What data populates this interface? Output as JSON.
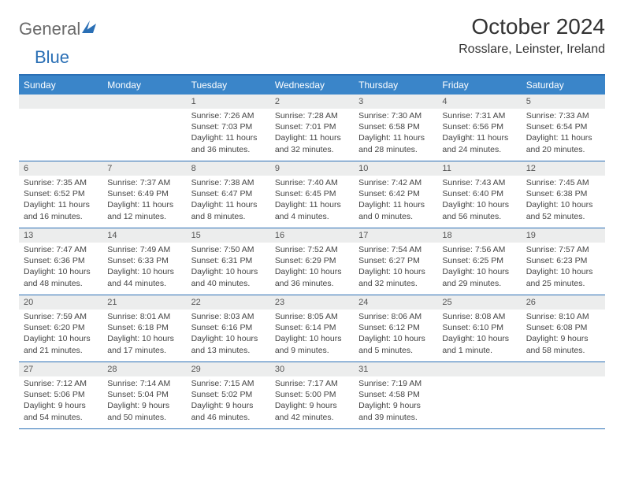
{
  "logo": {
    "text1": "General",
    "text2": "Blue"
  },
  "title": "October 2024",
  "location": "Rosslare, Leinster, Ireland",
  "colors": {
    "header_bar": "#3a85c9",
    "accent_line": "#2a6fb5",
    "daynum_bg": "#eceded",
    "logo_gray": "#6a6a6a",
    "logo_blue": "#2a6fb5"
  },
  "days_of_week": [
    "Sunday",
    "Monday",
    "Tuesday",
    "Wednesday",
    "Thursday",
    "Friday",
    "Saturday"
  ],
  "weeks": [
    [
      null,
      null,
      {
        "n": "1",
        "sr": "Sunrise: 7:26 AM",
        "ss": "Sunset: 7:03 PM",
        "dl": "Daylight: 11 hours and 36 minutes."
      },
      {
        "n": "2",
        "sr": "Sunrise: 7:28 AM",
        "ss": "Sunset: 7:01 PM",
        "dl": "Daylight: 11 hours and 32 minutes."
      },
      {
        "n": "3",
        "sr": "Sunrise: 7:30 AM",
        "ss": "Sunset: 6:58 PM",
        "dl": "Daylight: 11 hours and 28 minutes."
      },
      {
        "n": "4",
        "sr": "Sunrise: 7:31 AM",
        "ss": "Sunset: 6:56 PM",
        "dl": "Daylight: 11 hours and 24 minutes."
      },
      {
        "n": "5",
        "sr": "Sunrise: 7:33 AM",
        "ss": "Sunset: 6:54 PM",
        "dl": "Daylight: 11 hours and 20 minutes."
      }
    ],
    [
      {
        "n": "6",
        "sr": "Sunrise: 7:35 AM",
        "ss": "Sunset: 6:52 PM",
        "dl": "Daylight: 11 hours and 16 minutes."
      },
      {
        "n": "7",
        "sr": "Sunrise: 7:37 AM",
        "ss": "Sunset: 6:49 PM",
        "dl": "Daylight: 11 hours and 12 minutes."
      },
      {
        "n": "8",
        "sr": "Sunrise: 7:38 AM",
        "ss": "Sunset: 6:47 PM",
        "dl": "Daylight: 11 hours and 8 minutes."
      },
      {
        "n": "9",
        "sr": "Sunrise: 7:40 AM",
        "ss": "Sunset: 6:45 PM",
        "dl": "Daylight: 11 hours and 4 minutes."
      },
      {
        "n": "10",
        "sr": "Sunrise: 7:42 AM",
        "ss": "Sunset: 6:42 PM",
        "dl": "Daylight: 11 hours and 0 minutes."
      },
      {
        "n": "11",
        "sr": "Sunrise: 7:43 AM",
        "ss": "Sunset: 6:40 PM",
        "dl": "Daylight: 10 hours and 56 minutes."
      },
      {
        "n": "12",
        "sr": "Sunrise: 7:45 AM",
        "ss": "Sunset: 6:38 PM",
        "dl": "Daylight: 10 hours and 52 minutes."
      }
    ],
    [
      {
        "n": "13",
        "sr": "Sunrise: 7:47 AM",
        "ss": "Sunset: 6:36 PM",
        "dl": "Daylight: 10 hours and 48 minutes."
      },
      {
        "n": "14",
        "sr": "Sunrise: 7:49 AM",
        "ss": "Sunset: 6:33 PM",
        "dl": "Daylight: 10 hours and 44 minutes."
      },
      {
        "n": "15",
        "sr": "Sunrise: 7:50 AM",
        "ss": "Sunset: 6:31 PM",
        "dl": "Daylight: 10 hours and 40 minutes."
      },
      {
        "n": "16",
        "sr": "Sunrise: 7:52 AM",
        "ss": "Sunset: 6:29 PM",
        "dl": "Daylight: 10 hours and 36 minutes."
      },
      {
        "n": "17",
        "sr": "Sunrise: 7:54 AM",
        "ss": "Sunset: 6:27 PM",
        "dl": "Daylight: 10 hours and 32 minutes."
      },
      {
        "n": "18",
        "sr": "Sunrise: 7:56 AM",
        "ss": "Sunset: 6:25 PM",
        "dl": "Daylight: 10 hours and 29 minutes."
      },
      {
        "n": "19",
        "sr": "Sunrise: 7:57 AM",
        "ss": "Sunset: 6:23 PM",
        "dl": "Daylight: 10 hours and 25 minutes."
      }
    ],
    [
      {
        "n": "20",
        "sr": "Sunrise: 7:59 AM",
        "ss": "Sunset: 6:20 PM",
        "dl": "Daylight: 10 hours and 21 minutes."
      },
      {
        "n": "21",
        "sr": "Sunrise: 8:01 AM",
        "ss": "Sunset: 6:18 PM",
        "dl": "Daylight: 10 hours and 17 minutes."
      },
      {
        "n": "22",
        "sr": "Sunrise: 8:03 AM",
        "ss": "Sunset: 6:16 PM",
        "dl": "Daylight: 10 hours and 13 minutes."
      },
      {
        "n": "23",
        "sr": "Sunrise: 8:05 AM",
        "ss": "Sunset: 6:14 PM",
        "dl": "Daylight: 10 hours and 9 minutes."
      },
      {
        "n": "24",
        "sr": "Sunrise: 8:06 AM",
        "ss": "Sunset: 6:12 PM",
        "dl": "Daylight: 10 hours and 5 minutes."
      },
      {
        "n": "25",
        "sr": "Sunrise: 8:08 AM",
        "ss": "Sunset: 6:10 PM",
        "dl": "Daylight: 10 hours and 1 minute."
      },
      {
        "n": "26",
        "sr": "Sunrise: 8:10 AM",
        "ss": "Sunset: 6:08 PM",
        "dl": "Daylight: 9 hours and 58 minutes."
      }
    ],
    [
      {
        "n": "27",
        "sr": "Sunrise: 7:12 AM",
        "ss": "Sunset: 5:06 PM",
        "dl": "Daylight: 9 hours and 54 minutes."
      },
      {
        "n": "28",
        "sr": "Sunrise: 7:14 AM",
        "ss": "Sunset: 5:04 PM",
        "dl": "Daylight: 9 hours and 50 minutes."
      },
      {
        "n": "29",
        "sr": "Sunrise: 7:15 AM",
        "ss": "Sunset: 5:02 PM",
        "dl": "Daylight: 9 hours and 46 minutes."
      },
      {
        "n": "30",
        "sr": "Sunrise: 7:17 AM",
        "ss": "Sunset: 5:00 PM",
        "dl": "Daylight: 9 hours and 42 minutes."
      },
      {
        "n": "31",
        "sr": "Sunrise: 7:19 AM",
        "ss": "Sunset: 4:58 PM",
        "dl": "Daylight: 9 hours and 39 minutes."
      },
      null,
      null
    ]
  ]
}
